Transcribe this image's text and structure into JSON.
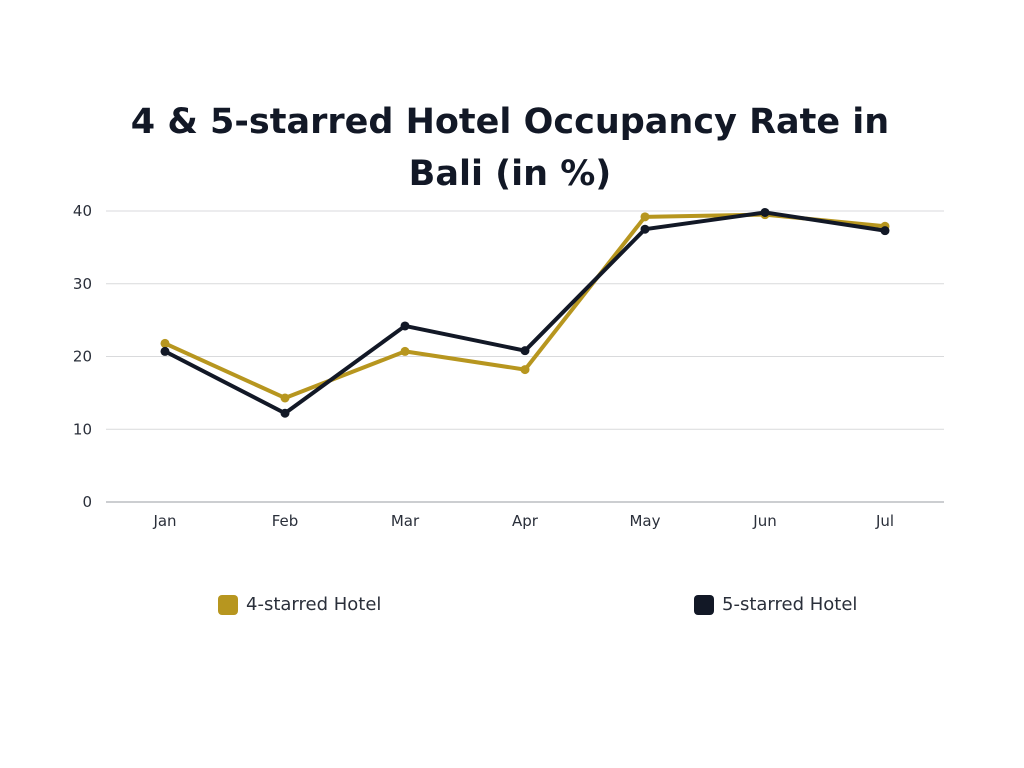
{
  "chart_data": {
    "type": "line",
    "title": "4 & 5-starred Hotel Occupancy Rate in Bali (in %)",
    "categories": [
      "Jan",
      "Feb",
      "Mar",
      "Apr",
      "May",
      "Jun",
      "Jul"
    ],
    "series": [
      {
        "name": "4-starred Hotel",
        "color": "#b7961f",
        "values": [
          21.8,
          14.3,
          20.7,
          18.2,
          39.2,
          39.5,
          37.9
        ]
      },
      {
        "name": "5-starred Hotel",
        "color": "#121826",
        "values": [
          20.7,
          12.2,
          24.2,
          20.8,
          37.5,
          39.8,
          37.3
        ]
      }
    ],
    "yticks": [
      0,
      10,
      20,
      30,
      40
    ],
    "ylim": [
      0,
      40
    ],
    "xlabel": "",
    "ylabel": "",
    "grid": true,
    "legend_position": "bottom"
  }
}
